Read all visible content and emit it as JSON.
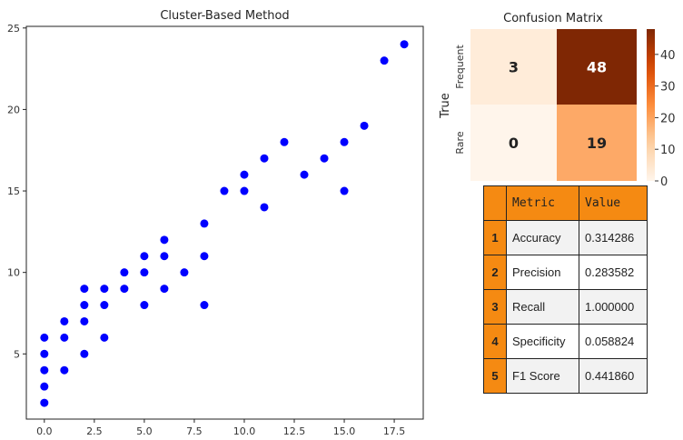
{
  "chart_data": [
    {
      "type": "scatter",
      "title": "Cluster-Based Method",
      "xlabel": "",
      "ylabel": "",
      "xlim": [
        -0.9,
        18.95
      ],
      "ylim": [
        1,
        25.1
      ],
      "xticks": [
        0,
        2.5,
        5,
        7.5,
        10,
        12.5,
        15,
        17.5
      ],
      "xtick_labels": [
        "0.0",
        "2.5",
        "5.0",
        "7.5",
        "10.0",
        "12.5",
        "15.0",
        "17.5"
      ],
      "yticks": [
        5,
        10,
        15,
        20,
        25
      ],
      "ytick_labels": [
        "5",
        "10",
        "15",
        "20",
        "25"
      ],
      "color": "#0000ff",
      "grid": false,
      "points": [
        [
          0,
          2
        ],
        [
          0,
          3
        ],
        [
          0,
          4
        ],
        [
          0,
          5
        ],
        [
          0,
          6
        ],
        [
          1,
          4
        ],
        [
          1,
          6
        ],
        [
          1,
          7
        ],
        [
          2,
          5
        ],
        [
          2,
          7
        ],
        [
          2,
          8
        ],
        [
          2,
          9
        ],
        [
          3,
          6
        ],
        [
          3,
          8
        ],
        [
          3,
          9
        ],
        [
          4,
          9
        ],
        [
          4,
          10
        ],
        [
          5,
          8
        ],
        [
          5,
          10
        ],
        [
          5,
          11
        ],
        [
          6,
          9
        ],
        [
          6,
          11
        ],
        [
          6,
          12
        ],
        [
          7,
          10
        ],
        [
          8,
          8
        ],
        [
          8,
          11
        ],
        [
          8,
          13
        ],
        [
          9,
          15
        ],
        [
          10,
          15
        ],
        [
          10,
          16
        ],
        [
          11,
          14
        ],
        [
          11,
          17
        ],
        [
          12,
          18
        ],
        [
          13,
          16
        ],
        [
          14,
          17
        ],
        [
          15,
          15
        ],
        [
          15,
          18
        ],
        [
          16,
          19
        ],
        [
          17,
          23
        ],
        [
          18,
          24
        ]
      ]
    },
    {
      "type": "heatmap",
      "title": "Confusion Matrix",
      "ylabel": "True",
      "row_labels": [
        "Frequent",
        "Rare"
      ],
      "values": [
        [
          3,
          48
        ],
        [
          0,
          19
        ]
      ],
      "colorbar": {
        "min": 0,
        "max": 48,
        "ticks": [
          0,
          10,
          20,
          30,
          40
        ],
        "tick_labels": [
          "0",
          "10",
          "20",
          "30",
          "40"
        ]
      },
      "colormap": "Oranges"
    },
    {
      "type": "table",
      "columns": [
        "",
        "Metric",
        "Value"
      ],
      "rows": [
        [
          "1",
          "Accuracy",
          "0.314286"
        ],
        [
          "2",
          "Precision",
          "0.283582"
        ],
        [
          "3",
          "Recall",
          "1.000000"
        ],
        [
          "4",
          "Specificity",
          "0.058824"
        ],
        [
          "5",
          "F1 Score",
          "0.441860"
        ]
      ],
      "header_color": "#f58a12"
    }
  ]
}
